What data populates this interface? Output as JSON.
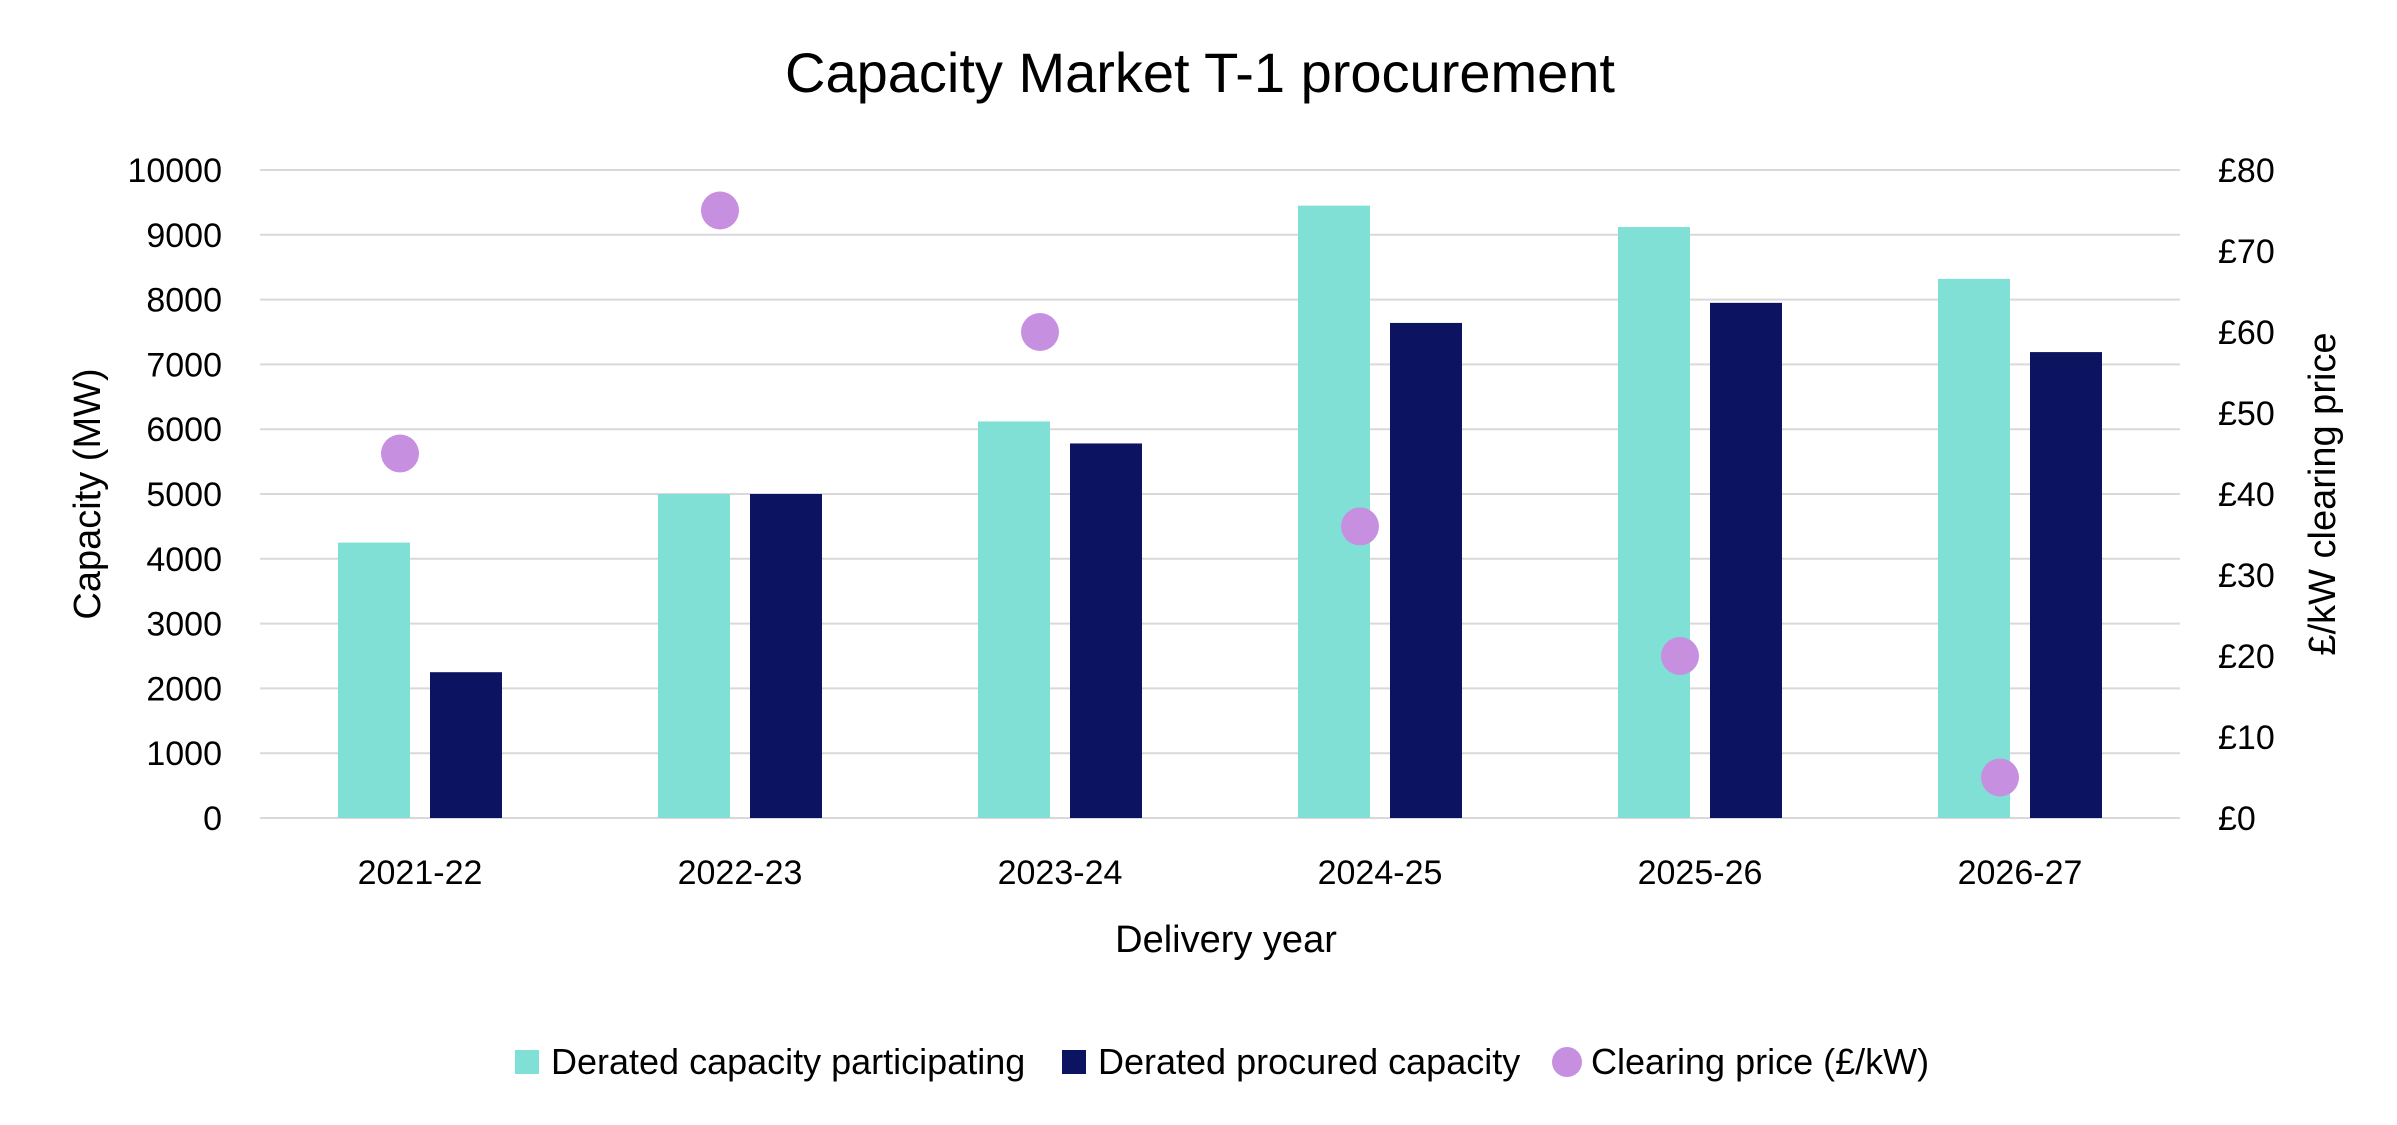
{
  "chart_data": {
    "type": "bar",
    "title": "Capacity Market T-1 procurement",
    "xlabel": "Delivery year",
    "ylabel": "Capacity (MW)",
    "y2label": "£/kW clearing price",
    "categories": [
      "2021-22",
      "2022-23",
      "2023-24",
      "2024-25",
      "2025-26",
      "2026-27"
    ],
    "ylim": [
      0,
      10000
    ],
    "yticks": [
      0,
      1000,
      2000,
      3000,
      4000,
      5000,
      6000,
      7000,
      8000,
      9000,
      10000
    ],
    "y2lim": [
      0,
      80
    ],
    "y2ticks": [
      "£0",
      "£10",
      "£20",
      "£30",
      "£40",
      "£50",
      "£60",
      "£70",
      "£80"
    ],
    "grid": true,
    "legend_position": "bottom",
    "series": [
      {
        "name": "Derated capacity participating",
        "type": "bar",
        "axis": "left",
        "color": "#80e0d6",
        "values": [
          4250,
          5000,
          6120,
          9450,
          9120,
          8320
        ]
      },
      {
        "name": "Derated procured capacity",
        "type": "bar",
        "axis": "left",
        "color": "#0c1461",
        "values": [
          2250,
          5000,
          5780,
          7640,
          7950,
          7190
        ]
      },
      {
        "name": "Clearing price (£/kW)",
        "type": "scatter",
        "axis": "right",
        "color": "#c78fe0",
        "values": [
          45,
          75,
          60,
          36,
          20,
          5
        ]
      }
    ]
  }
}
